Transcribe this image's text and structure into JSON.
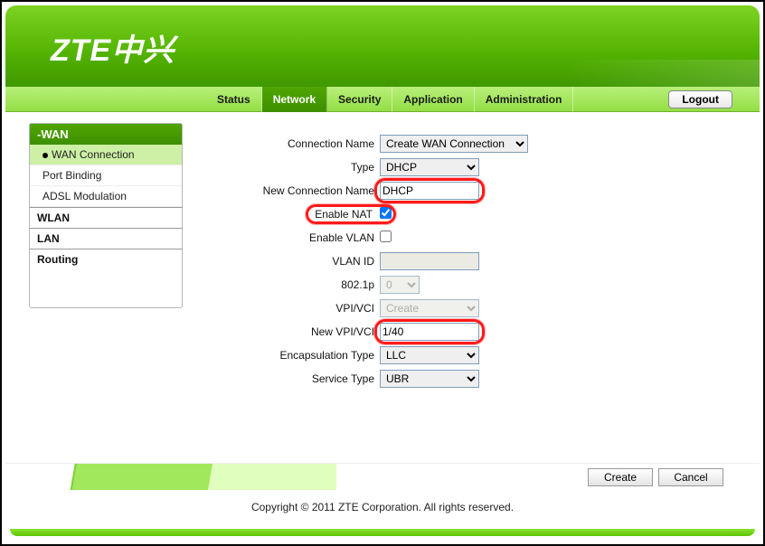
{
  "brand": {
    "logo_text": "ZTE中兴",
    "color_primary": "#52b202"
  },
  "tabs": {
    "t0": "Status",
    "t1": "Network",
    "t2": "Security",
    "t3": "Application",
    "t4": "Administration",
    "logout": "Logout"
  },
  "sidebar": {
    "head": "-WAN",
    "items": {
      "i0": "WAN Connection",
      "i1": "Port Binding",
      "i2": "ADSL Modulation"
    },
    "cats": {
      "c0": "WLAN",
      "c1": "LAN",
      "c2": "Routing"
    }
  },
  "form": {
    "labels": {
      "conn_name": "Connection Name",
      "type": "Type",
      "new_conn": "New Connection Name",
      "enable_nat": "Enable NAT",
      "enable_vlan": "Enable VLAN",
      "vlan_id": "VLAN ID",
      "dot1p": "802.1p",
      "vpivci": "VPI/VCI",
      "new_vpivci": "New VPI/VCI",
      "encap": "Encapsulation Type",
      "service": "Service Type"
    },
    "values": {
      "conn_name": "Create WAN Connection",
      "type": "DHCP",
      "new_conn": "DHCP",
      "enable_nat": true,
      "enable_vlan": false,
      "vlan_id": "",
      "dot1p": "0",
      "vpivci": "Create",
      "new_vpivci": "1/40",
      "encap": "LLC",
      "service": "UBR"
    }
  },
  "footer": {
    "create": "Create",
    "cancel": "Cancel"
  },
  "copyright": "Copyright © 2011 ZTE Corporation. All rights reserved.",
  "highlight_color": "#ff1a1a"
}
